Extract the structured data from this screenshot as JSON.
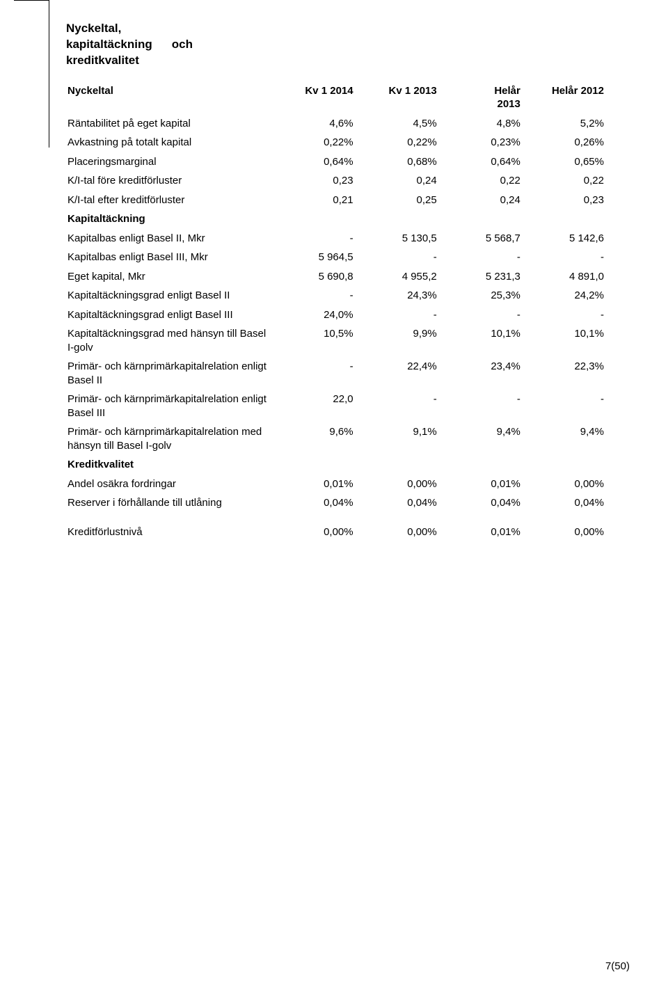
{
  "title": {
    "line1": "Nyckeltal,",
    "line2a": "kapitaltäckning",
    "line2b": "och",
    "line3": "kreditkvalitet"
  },
  "columns": {
    "metric": "Nyckeltal",
    "c1": "Kv 1 2014",
    "c2": "Kv 1 2013",
    "c3_top": "Helår",
    "c3_bottom": "2013",
    "c4": "Helår 2012"
  },
  "rows": [
    {
      "label": "Räntabilitet på eget kapital",
      "v": [
        "4,6%",
        "4,5%",
        "4,8%",
        "5,2%"
      ]
    },
    {
      "label": "Avkastning på totalt kapital",
      "v": [
        "0,22%",
        "0,22%",
        "0,23%",
        "0,26%"
      ]
    },
    {
      "label": "Placeringsmarginal",
      "v": [
        "0,64%",
        "0,68%",
        "0,64%",
        "0,65%"
      ]
    },
    {
      "label": "K/I-tal före kreditförluster",
      "v": [
        "0,23",
        "0,24",
        "0,22",
        "0,22"
      ]
    },
    {
      "label": "K/I-tal efter kreditförluster",
      "v": [
        "0,21",
        "0,25",
        "0,24",
        "0,23"
      ]
    }
  ],
  "kapital_heading": "Kapitaltäckning",
  "kapital_rows": [
    {
      "label": "Kapitalbas enligt Basel II, Mkr",
      "v": [
        "-",
        "5 130,5",
        "5 568,7",
        "5 142,6"
      ]
    },
    {
      "label": "Kapitalbas enligt Basel III, Mkr",
      "v": [
        "5 964,5",
        "-",
        "-",
        "-"
      ]
    },
    {
      "label": "Eget kapital, Mkr",
      "v": [
        "5 690,8",
        "4 955,2",
        "5 231,3",
        "4 891,0"
      ]
    },
    {
      "label": "Kapitaltäckningsgrad enligt Basel II",
      "v": [
        "-",
        "24,3%",
        "25,3%",
        "24,2%"
      ]
    },
    {
      "label": "Kapitaltäckningsgrad enligt Basel III",
      "v": [
        "24,0%",
        "-",
        "-",
        "-"
      ]
    },
    {
      "label": "Kapitaltäckningsgrad med hänsyn till Basel I-golv",
      "v": [
        "10,5%",
        "9,9%",
        "10,1%",
        "10,1%"
      ]
    },
    {
      "label": "Primär- och kärnprimärkapitalrelation enligt Basel II",
      "v": [
        "-",
        "22,4%",
        "23,4%",
        "22,3%"
      ]
    },
    {
      "label": "Primär- och kärnprimärkapitalrelation enligt Basel III",
      "v": [
        "22,0",
        "-",
        "-",
        "-"
      ]
    },
    {
      "label": "Primär- och kärnprimärkapitalrelation med hänsyn till Basel I-golv",
      "v": [
        "9,6%",
        "9,1%",
        "9,4%",
        "9,4%"
      ]
    }
  ],
  "kredit_heading": "Kreditkvalitet",
  "kredit_rows": [
    {
      "label": "Andel osäkra fordringar",
      "v": [
        "0,01%",
        "0,00%",
        "0,01%",
        "0,00%"
      ]
    },
    {
      "label": "Reserver i förhållande till utlåning",
      "v": [
        "0,04%",
        "0,04%",
        "0,04%",
        "0,04%"
      ]
    }
  ],
  "final_row": {
    "label": "Kreditförlustnivå",
    "v": [
      "0,00%",
      "0,00%",
      "0,01%",
      "0,00%"
    ]
  },
  "footer": "7(50)"
}
